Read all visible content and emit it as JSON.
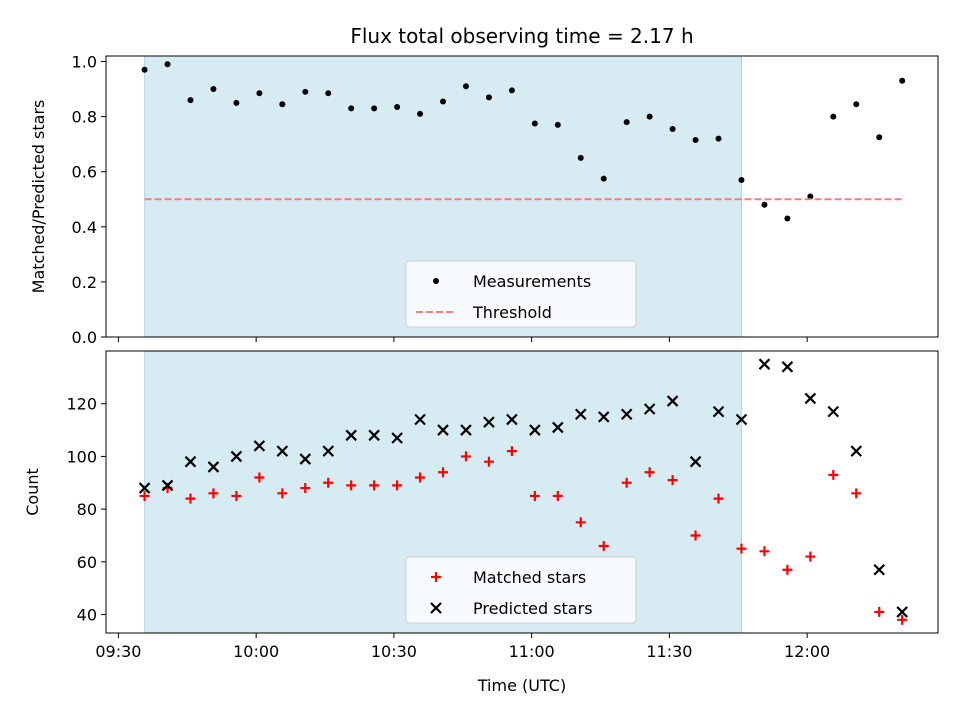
{
  "chart_data": {
    "type": "scatter",
    "title": "Flux total observing time = 2.17 h",
    "xlabel": "Time (UTC)",
    "x_ticks": [
      {
        "min": 570,
        "label": "09:30"
      },
      {
        "min": 600,
        "label": "10:00"
      },
      {
        "min": 630,
        "label": "10:30"
      },
      {
        "min": 660,
        "label": "11:00"
      },
      {
        "min": 690,
        "label": "11:30"
      },
      {
        "min": 720,
        "label": "12:00"
      }
    ],
    "xlim": [
      567.3,
      748.5
    ],
    "shaded_interval": {
      "start": 575.7,
      "end": 705.7,
      "color": "#add8e6"
    },
    "times_min": [
      575.7,
      580.7,
      585.7,
      590.7,
      595.7,
      600.7,
      605.7,
      610.7,
      615.7,
      620.7,
      625.7,
      630.7,
      635.7,
      640.7,
      645.7,
      650.7,
      655.7,
      660.7,
      665.7,
      670.7,
      675.7,
      680.7,
      685.7,
      690.7,
      695.7,
      700.7,
      705.7,
      710.7,
      715.7,
      720.7,
      725.7,
      730.7,
      735.7,
      740.7
    ],
    "panels": [
      {
        "ylabel": "Matched/Predicted stars",
        "ylim": [
          0,
          1.02
        ],
        "y_ticks": [
          0.0,
          0.2,
          0.4,
          0.6,
          0.8,
          1.0
        ],
        "y_tick_labels": [
          "0.0",
          "0.2",
          "0.4",
          "0.6",
          "0.8",
          "1.0"
        ],
        "series": [
          {
            "name": "Measurements",
            "marker": "dot",
            "color": "#000000",
            "values": [
              0.97,
              0.99,
              0.86,
              0.9,
              0.85,
              0.885,
              0.845,
              0.89,
              0.885,
              0.83,
              0.83,
              0.835,
              0.81,
              0.855,
              0.91,
              0.87,
              0.895,
              0.775,
              0.77,
              0.65,
              0.575,
              0.78,
              0.8,
              0.755,
              0.715,
              0.72,
              0.57,
              0.48,
              0.43,
              0.51,
              0.8,
              0.845,
              0.725,
              0.93
            ]
          },
          {
            "name": "Threshold",
            "marker": "dashed-line",
            "color": "#f08080",
            "values": [
              0.5,
              0.5
            ]
          }
        ],
        "legend": {
          "location": "lower-center",
          "entries": [
            "Measurements",
            "Threshold"
          ]
        }
      },
      {
        "ylabel": "Count",
        "ylim": [
          33,
          140
        ],
        "y_ticks": [
          40,
          60,
          80,
          100,
          120
        ],
        "y_tick_labels": [
          "40",
          "60",
          "80",
          "100",
          "120"
        ],
        "series": [
          {
            "name": "Matched stars",
            "marker": "plus",
            "color": "#ff0000",
            "values": [
              85,
              88,
              84,
              86,
              85,
              92,
              86,
              88,
              90,
              89,
              89,
              89,
              92,
              94,
              100,
              98,
              102,
              85,
              85,
              75,
              66,
              90,
              94,
              91,
              70,
              84,
              65,
              64,
              57,
              62,
              93,
              86,
              41,
              38
            ]
          },
          {
            "name": "Predicted stars",
            "marker": "x",
            "color": "#000000",
            "values": [
              88,
              89,
              98,
              96,
              100,
              104,
              102,
              99,
              102,
              108,
              108,
              107,
              114,
              110,
              110,
              113,
              114,
              110,
              111,
              116,
              115,
              116,
              118,
              121,
              98,
              117,
              114,
              135,
              134,
              122,
              117,
              102,
              57,
              41
            ]
          }
        ],
        "legend": {
          "location": "lower-center",
          "entries": [
            "Matched stars",
            "Predicted stars"
          ]
        }
      }
    ]
  }
}
